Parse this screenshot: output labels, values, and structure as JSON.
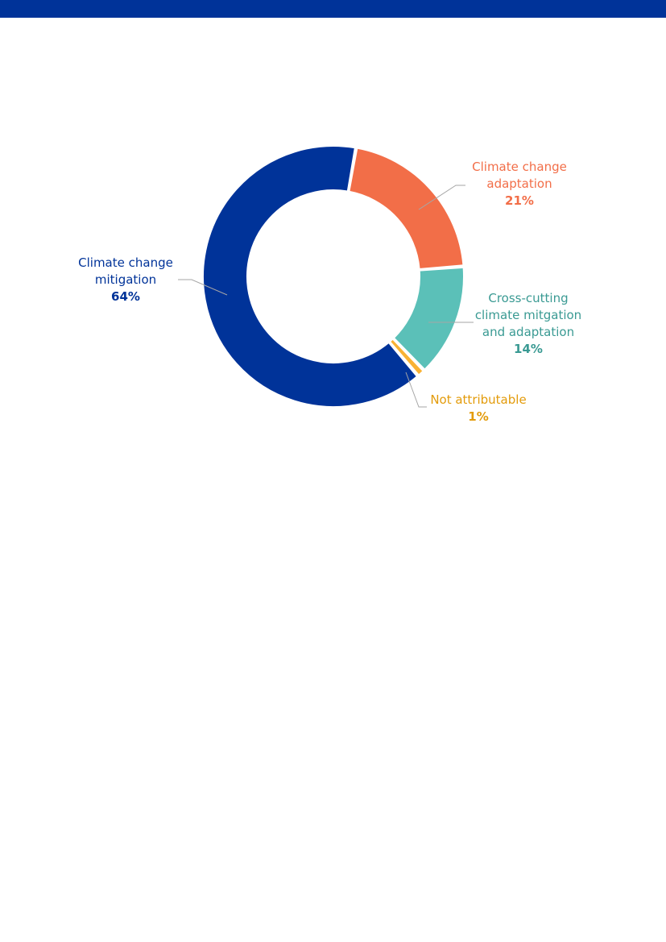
{
  "header": {
    "bar_color": "#003399"
  },
  "chart_data": {
    "type": "pie",
    "style": "donut",
    "title": "",
    "start_angle_deg": 10,
    "direction": "clockwise",
    "slices": [
      {
        "label_lines": [
          "Climate change",
          "adaptation"
        ],
        "value": 21,
        "display": "21%",
        "color": "#f26e48",
        "text_color": "#f26e48"
      },
      {
        "label_lines": [
          "Cross-cutting",
          "climate mitgation",
          "and adaptation"
        ],
        "value": 14,
        "display": "14%",
        "color": "#5bc0b8",
        "text_color": "#3a9a93"
      },
      {
        "label_lines": [
          "Not attributable"
        ],
        "value": 1,
        "display": "1%",
        "color": "#f9b233",
        "text_color": "#e39b0a"
      },
      {
        "label_lines": [
          "Climate change",
          "mitigation"
        ],
        "value": 64,
        "display": "64%",
        "color": "#003399",
        "text_color": "#003399"
      }
    ],
    "legend": "none",
    "labels": "outside-with-leader-lines"
  }
}
